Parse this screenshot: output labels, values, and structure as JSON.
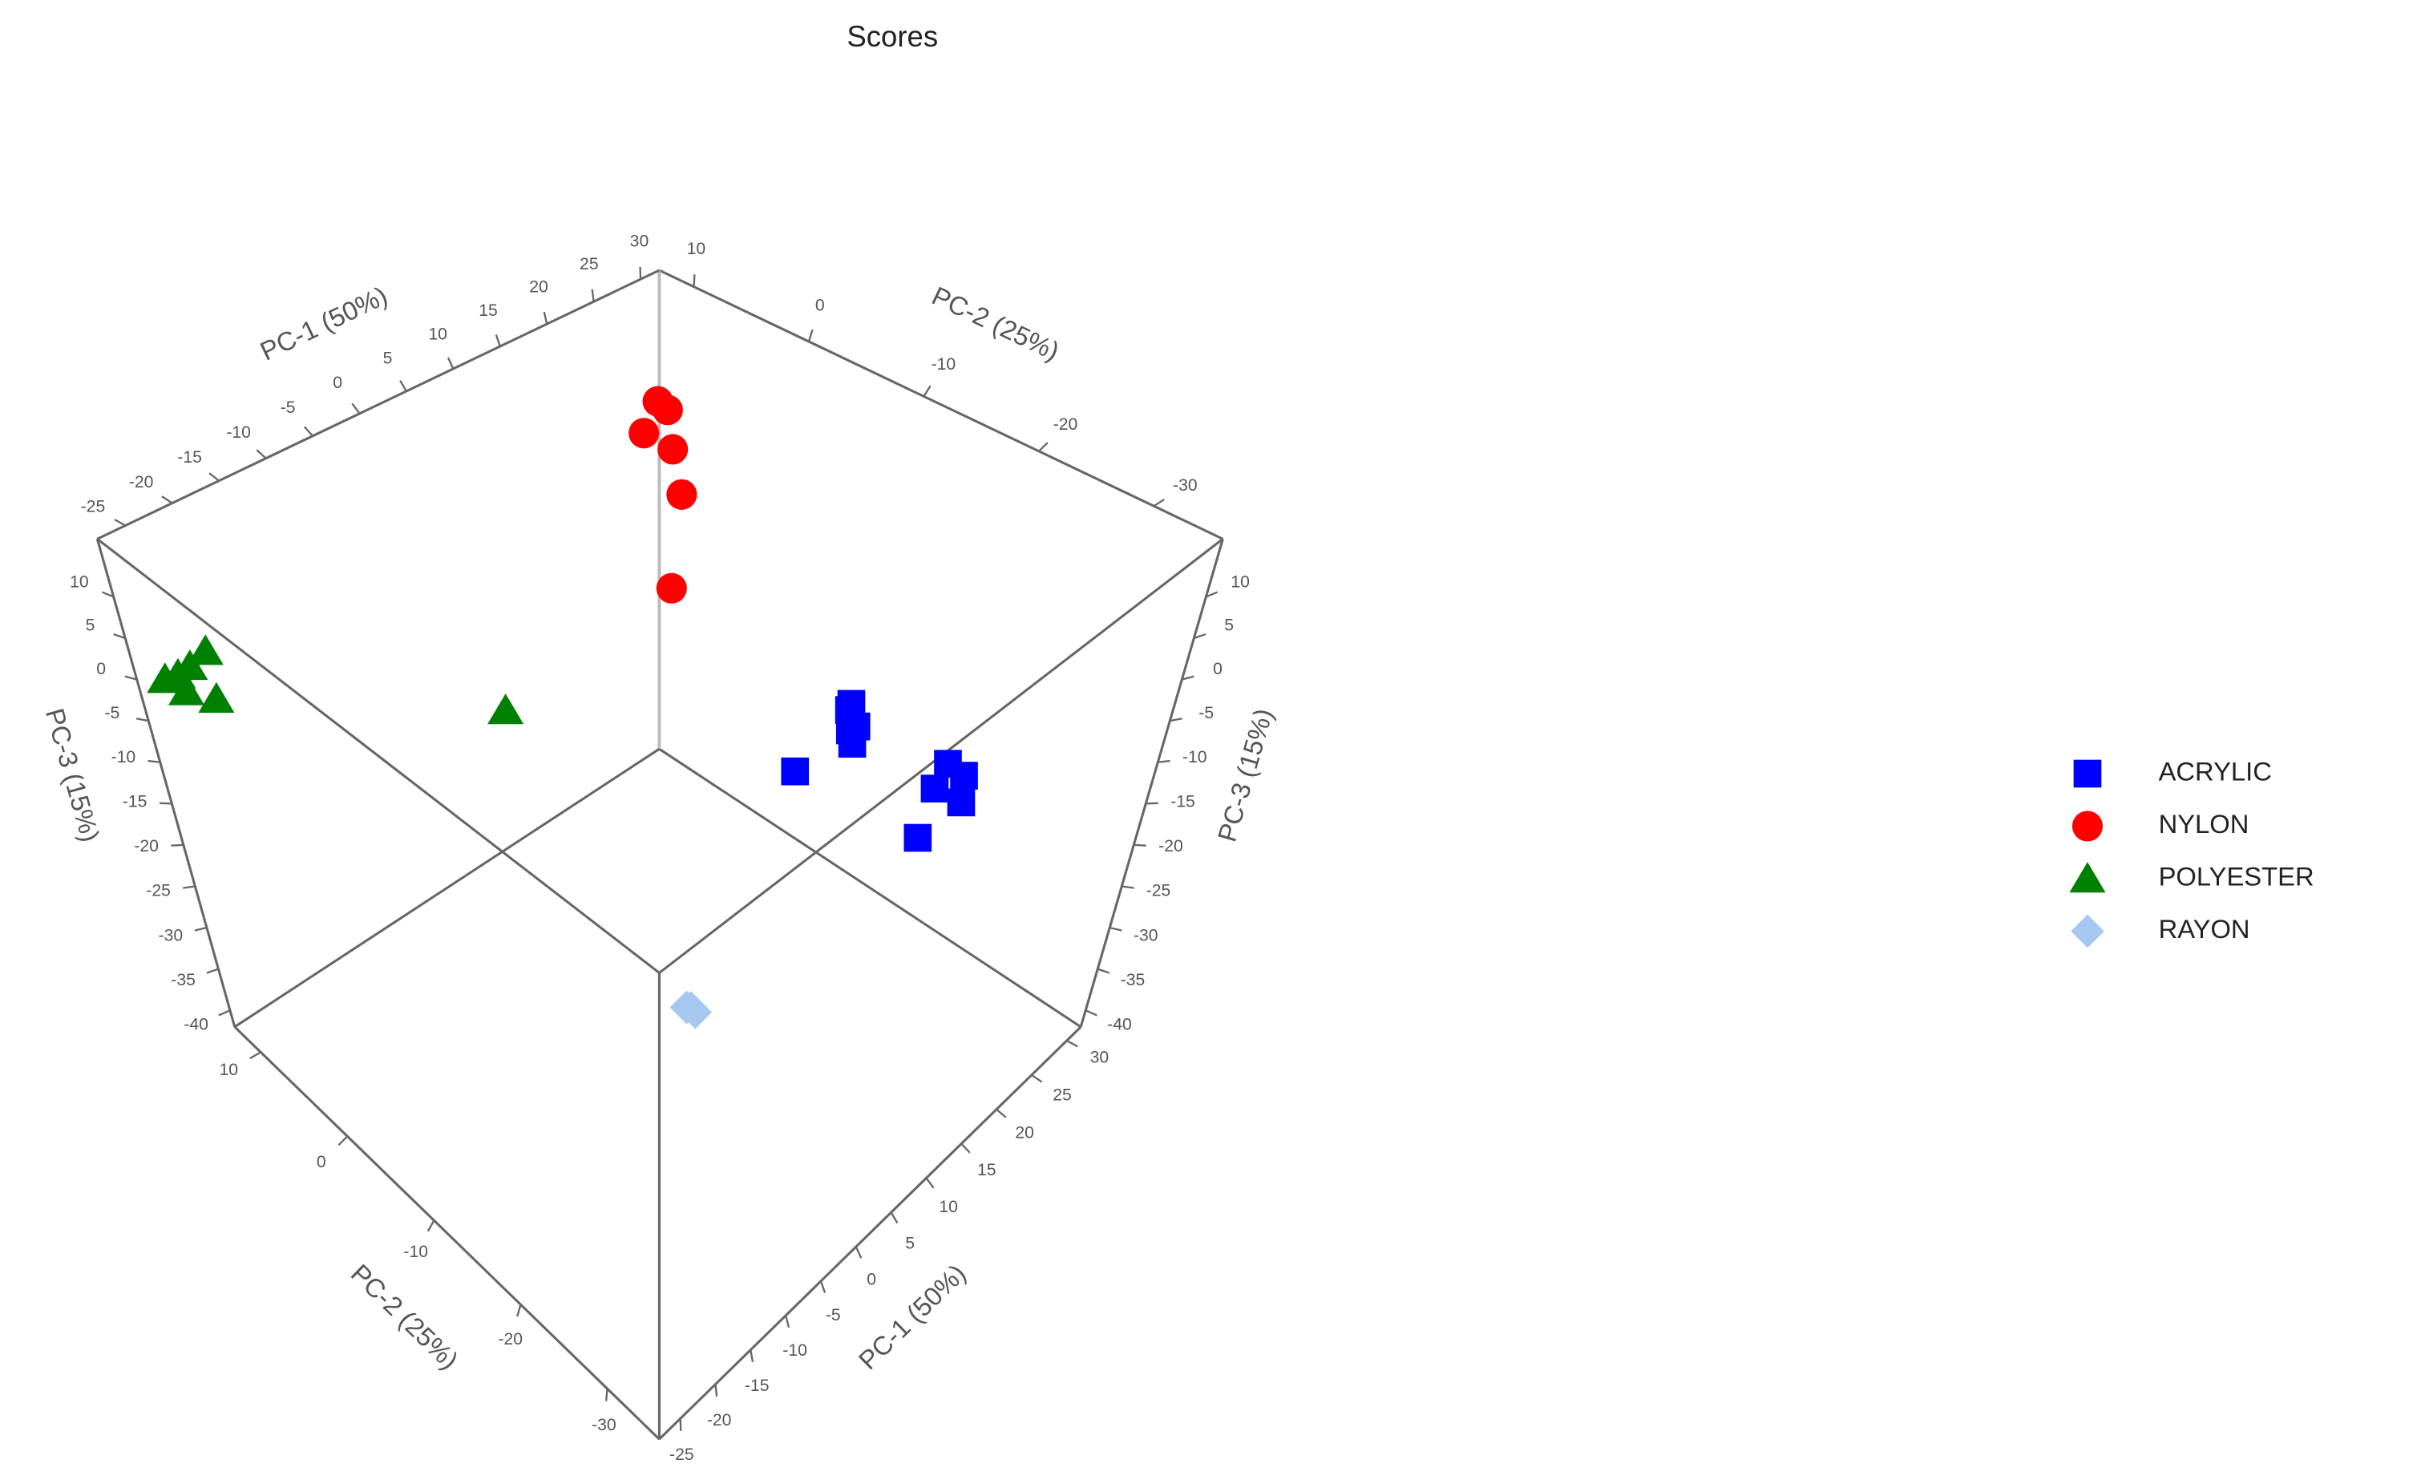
{
  "chart_data": {
    "type": "scatter3d",
    "title": "Scores",
    "x_label": "PC-1 (50%)",
    "y_label": "PC-2 (25%)",
    "z_label": "PC-3 (15%)",
    "xlim": [
      -28,
      32
    ],
    "ylim": [
      -36,
      13
    ],
    "zlim": [
      -42,
      17
    ],
    "xticks": [
      -25,
      -20,
      -15,
      -10,
      -5,
      0,
      5,
      10,
      15,
      20,
      25,
      30
    ],
    "yticks": [
      -30,
      -20,
      -10,
      0,
      10
    ],
    "zticks": [
      -40,
      -35,
      -30,
      -25,
      -20,
      -15,
      -10,
      -5,
      0,
      5,
      10
    ],
    "legend_position": "right",
    "series": [
      {
        "name": "ACRYLIC",
        "color": "#0000ff",
        "marker": "square",
        "x": [
          20,
          20.5,
          19.5,
          21,
          20,
          23,
          24,
          22.5,
          23.5,
          17,
          22
        ],
        "y": [
          -15.5,
          -15,
          -16,
          -15.5,
          -16,
          -23,
          -24,
          -22.5,
          -24.5,
          -13,
          -22
        ],
        "z": [
          -8,
          -9.5,
          -10.5,
          -11.5,
          -12.5,
          -12,
          -13.5,
          -15,
          -16,
          -16,
          -21
        ]
      },
      {
        "name": "NYLON",
        "color": "#ff0000",
        "marker": "circle",
        "x": [
          30,
          30.5,
          29,
          30.5,
          31,
          30.5
        ],
        "y": [
          11.5,
          11,
          12,
          10.5,
          10,
          10.5
        ],
        "z": [
          3,
          2,
          -0.7,
          -2.5,
          -8,
          -19.6
        ]
      },
      {
        "name": "POLYESTER",
        "color": "#008000",
        "marker": "triangle",
        "x": [
          -25,
          -24,
          -22.5,
          -23,
          -26,
          -25,
          -1
        ],
        "y": [
          11.5,
          11,
          10.5,
          10,
          12,
          11,
          1
        ],
        "z": [
          0.5,
          1.5,
          3,
          -2,
          0,
          -1,
          -8
        ]
      },
      {
        "name": "RAYON",
        "color": "#a6c8f0",
        "marker": "diamond",
        "x": [
          -22,
          -21.5,
          -22.5
        ],
        "y": [
          -34,
          -34,
          -34
        ],
        "z": [
          5,
          4,
          5.5
        ]
      }
    ]
  }
}
